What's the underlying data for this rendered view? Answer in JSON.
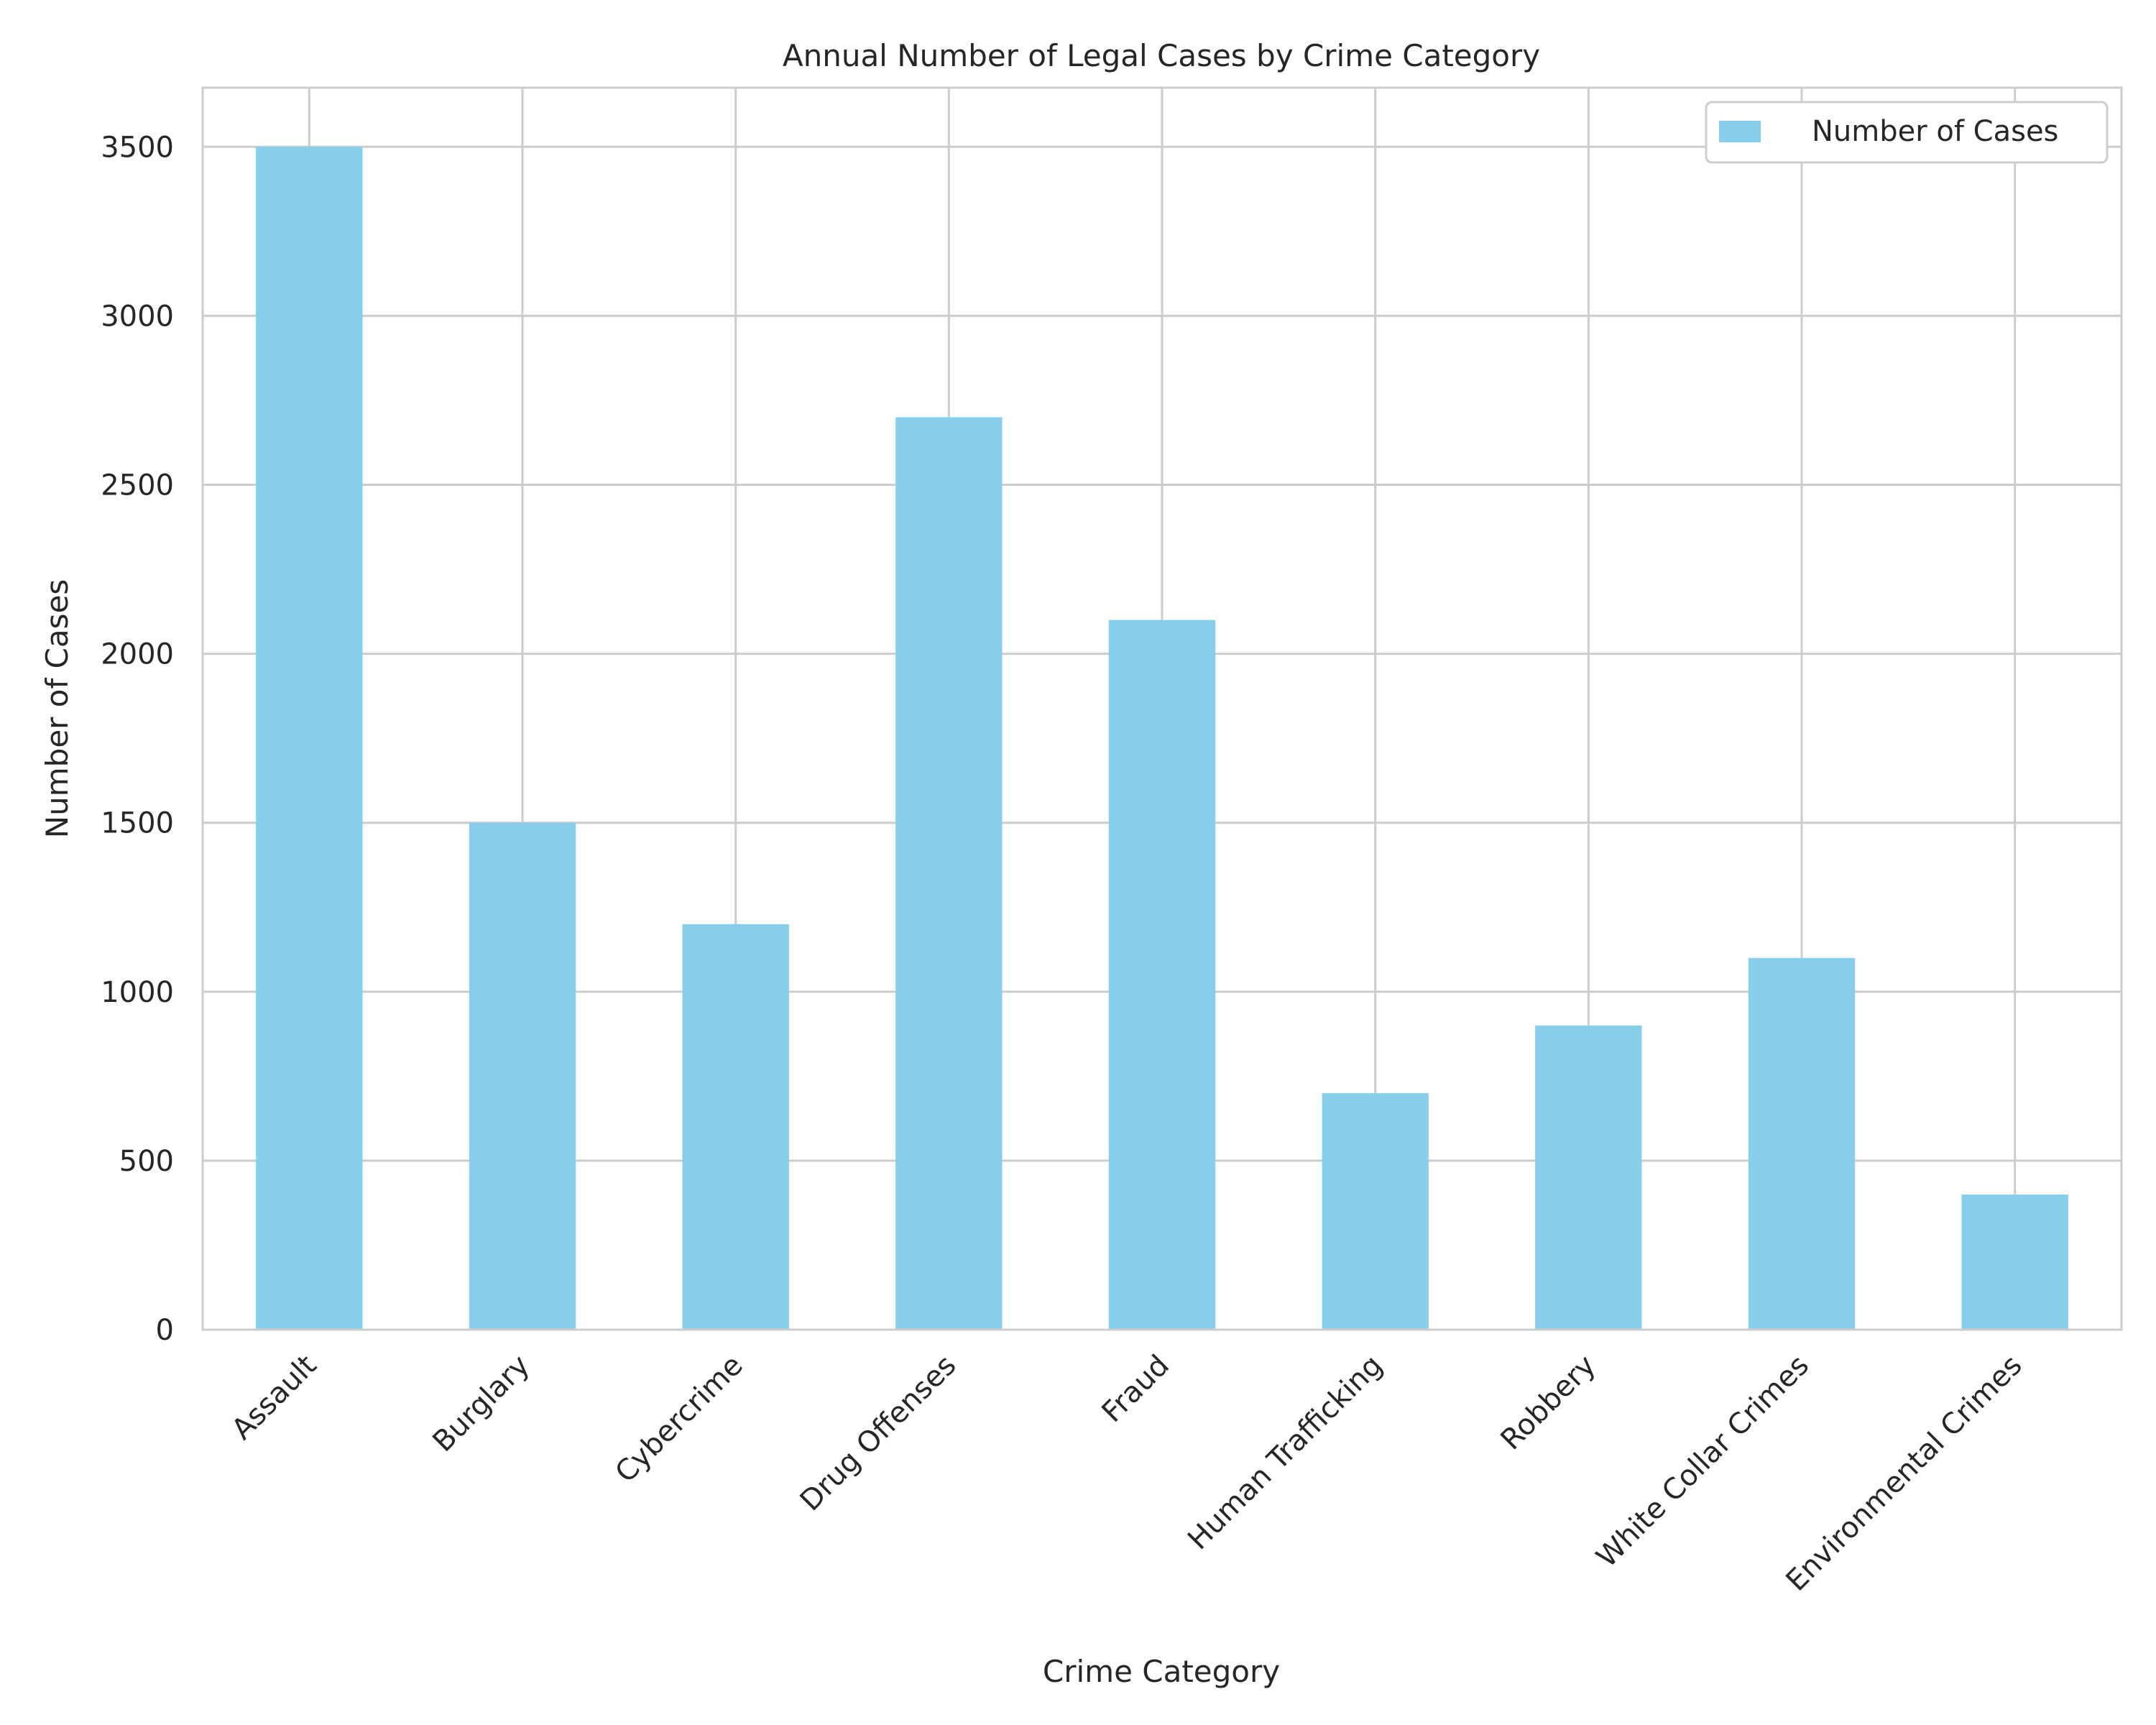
{
  "chart_data": {
    "type": "bar",
    "title": "Annual Number of Legal Cases by Crime Category",
    "xlabel": "Crime Category",
    "ylabel": "Number of Cases",
    "categories": [
      "Assault",
      "Burglary",
      "Cybercrime",
      "Drug Offenses",
      "Fraud",
      "Human Trafficking",
      "Robbery",
      "White Collar Crimes",
      "Environmental Crimes"
    ],
    "series": [
      {
        "name": "Number of Cases",
        "values": [
          3500,
          1500,
          1200,
          2700,
          2100,
          700,
          900,
          1100,
          400
        ]
      }
    ],
    "ylim": [
      0,
      3675
    ],
    "yticks": [
      0,
      500,
      1000,
      1500,
      2000,
      2500,
      3000,
      3500
    ],
    "grid": true,
    "legend": "top-right",
    "colors": {
      "bar": "#87CEEB",
      "grid": "#cccccc",
      "spine": "#cccccc",
      "text": "#262626"
    }
  }
}
